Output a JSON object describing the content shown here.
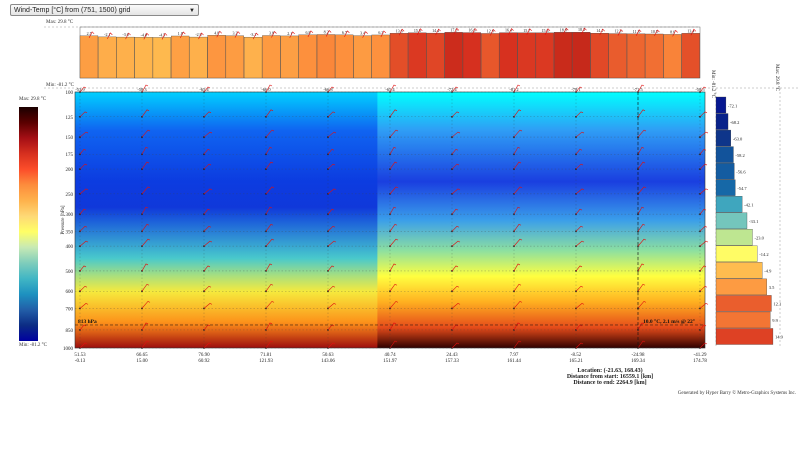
{
  "dropdown": {
    "label": "Wind-Temp [°C] from (751, 1500) grid"
  },
  "top_panel": {
    "max_label": "Max: 29.8 °C",
    "min_label": "Min: -81.2 °C"
  },
  "colorbar": {
    "max_label": "Max: 29.8 °C",
    "min_label": "Min: -81.2 °C",
    "stops": [
      "#1a0000",
      "#5a0000",
      "#a50f15",
      "#d7301f",
      "#fc4e2a",
      "#fd8d3c",
      "#feb24c",
      "#fed976",
      "#ffff66",
      "#c7e9b4",
      "#7fcdbb",
      "#41b6c4",
      "#1d91c0",
      "#225ea8",
      "#0c2c84",
      "#0000a0"
    ]
  },
  "right_panel": {
    "label1": "Min: -81.2 °C",
    "label2": "Max: 29.8 °C"
  },
  "chart_data": {
    "type": "heatmap",
    "title": "Wind-Temp [°C] from (751, 1500) grid",
    "ylabel": "Pressure [hPa]",
    "pressure_levels": [
      100,
      125,
      150,
      175,
      200,
      250,
      300,
      350,
      400,
      500,
      600,
      700,
      850,
      1000
    ],
    "x_columns": [
      {
        "top": "51.53",
        "bottom": "-0.13"
      },
      {
        "top": "66.65",
        "bottom": "15.00"
      },
      {
        "top": "76.90",
        "bottom": "60.92"
      },
      {
        "top": "71.81",
        "bottom": "121.93"
      },
      {
        "top": "50.63",
        "bottom": "143.06"
      },
      {
        "top": "40.74",
        "bottom": "151.97"
      },
      {
        "top": "24.43",
        "bottom": "157.33"
      },
      {
        "top": "7.97",
        "bottom": "161.44"
      },
      {
        "top": "-8.52",
        "bottom": "165.21"
      },
      {
        "top": "-24.98",
        "bottom": "169.34"
      },
      {
        "top": "-41.29",
        "bottom": "174.78"
      }
    ],
    "top_row_values": [
      "-53.9",
      "-58.3",
      "-65.4",
      "-66.0",
      "-66.8",
      "-65.4",
      "-72.4",
      "-81.2",
      "-78.1",
      "-71.5",
      "-58.5"
    ],
    "surface_bar_values": [
      "2.5",
      "-2.1",
      "-3.0",
      "-4.0",
      "-4.5",
      "1.8",
      "-2.9",
      "4.8",
      "3.2",
      "-3.2",
      "3.8",
      "2.1",
      "6.8",
      "8.2",
      "6.7",
      "3.4",
      "6.3",
      "13.6",
      "15.6",
      "14.4",
      "17.6",
      "16.6",
      "12.8",
      "16.4",
      "15.7",
      "15.6",
      "18.0",
      "18.3",
      "14.1",
      "12.3",
      "11.3",
      "10.5",
      "8.6",
      "13.4"
    ],
    "right_profile_values": [
      "-72.1",
      "-68.2",
      "-63.0",
      "-58.2",
      "-56.6",
      "-54.7",
      "-42.1",
      "-33.1",
      "-23.0",
      "-14.2",
      "-4.9",
      "3.5",
      "12.1",
      "9.9",
      "14.9"
    ],
    "right_profile_range": [
      -81.2,
      29.8
    ],
    "highlight": {
      "pressure_label": "813 hPa",
      "readout": "10.0 °C, 2.1 m/s @ 22°"
    },
    "location": {
      "location": "Location: (-21.63, 168.43)",
      "distance_from_start": "Distance from start: 16559.1 [km]",
      "distance_to_end": "Distance to end: 2264.9 [km]"
    },
    "colorbar_range": [
      -81.2,
      29.8
    ]
  },
  "credit": "Generated by Hyper Barry © Metro-Graphics Systems Inc."
}
